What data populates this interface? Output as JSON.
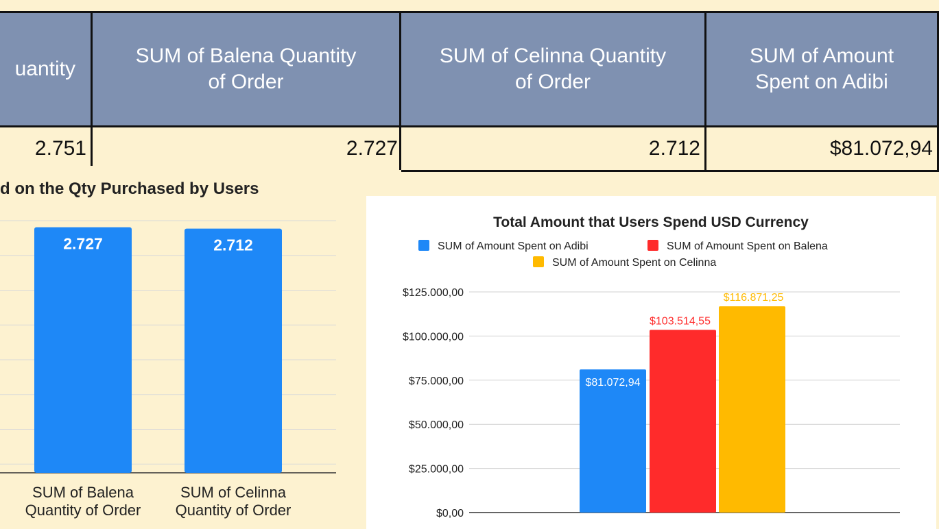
{
  "table": {
    "headers": [
      {
        "line1": "uantity",
        "line2": ""
      },
      {
        "line1": "SUM of Balena Quantity",
        "line2": "of Order"
      },
      {
        "line1": "SUM of Celinna Quantity",
        "line2": "of Order"
      },
      {
        "line1": "SUM of Amount",
        "line2": "Spent on Adibi"
      }
    ],
    "values": [
      "2.751",
      "2.727",
      "2.712",
      "$81.072,94"
    ]
  },
  "colors": {
    "header_bg": "#7f91b1",
    "page_bg": "#fdf2d0",
    "adibi": "#1e88f7",
    "balena": "#ff2b2b",
    "celinna": "#ffba00"
  },
  "chart_data": [
    {
      "type": "bar",
      "title": "d on the Qty Purchased by Users",
      "categories": [
        [
          "SUM of Balena",
          "Quantity of Order"
        ],
        [
          "SUM of Celinna",
          "Quantity of Order"
        ]
      ],
      "values": [
        2727,
        2712
      ],
      "data_labels": [
        "2.727",
        "2.712"
      ],
      "ylim": [
        0,
        2800
      ],
      "grid": true,
      "color": "#1e88f7"
    },
    {
      "type": "bar",
      "title": "Total Amount that Users Spend USD Currency",
      "legend_position": "top",
      "ylim": [
        0,
        125000
      ],
      "yticks": [
        0,
        25000,
        50000,
        75000,
        100000,
        125000
      ],
      "ytick_labels": [
        "$0,00",
        "$25.000,00",
        "$50.000,00",
        "$75.000,00",
        "$100.000,00",
        "$125.000,00"
      ],
      "grid": true,
      "series": [
        {
          "name": "SUM of Amount Spent on Adibi",
          "values": [
            81072.94
          ],
          "label": "$81.072,94",
          "color": "#1e88f7"
        },
        {
          "name": "SUM of Amount Spent on Balena",
          "values": [
            103514.55
          ],
          "label": "$103.514,55",
          "color": "#ff2b2b"
        },
        {
          "name": "SUM of Amount Spent on Celinna",
          "values": [
            116871.25
          ],
          "label": "$116.871,25",
          "color": "#ffba00"
        }
      ]
    }
  ]
}
